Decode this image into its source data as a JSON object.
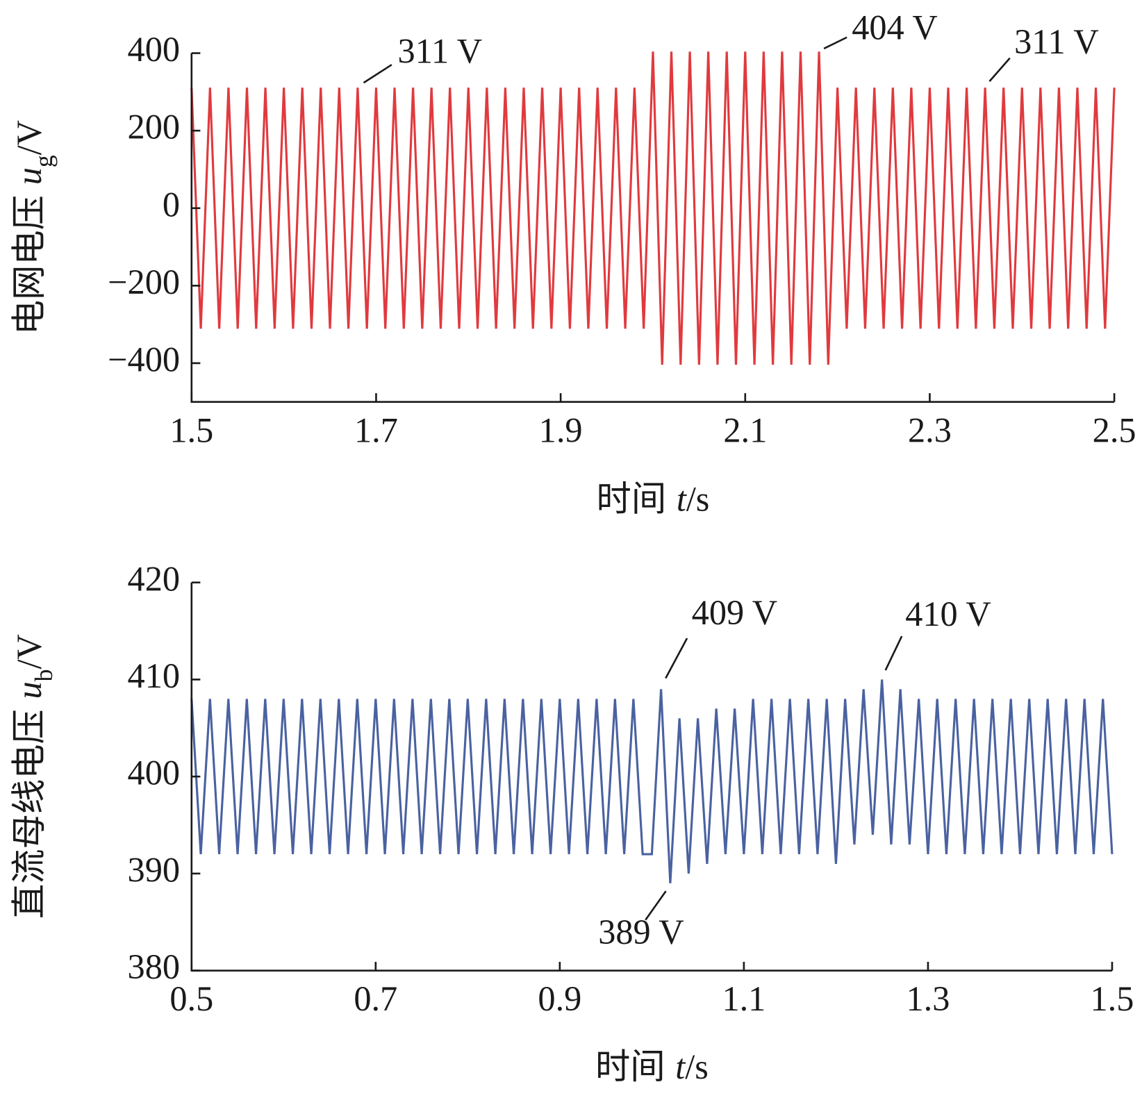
{
  "chart_data": [
    {
      "type": "line",
      "xlabel": {
        "text": "时间",
        "symbol": "t",
        "unit": "/s"
      },
      "ylabel": {
        "text": "电网电压",
        "symbol": "u",
        "subscript": "g",
        "unit": "/V"
      },
      "xlim": [
        1.5,
        2.5
      ],
      "xticks": [
        1.5,
        1.7,
        1.9,
        2.1,
        2.3,
        2.5
      ],
      "ylim": [
        -500,
        400
      ],
      "yticks": [
        {
          "value": -400,
          "label": "−400"
        },
        {
          "value": -200,
          "label": "−200"
        },
        0,
        200,
        400
      ],
      "x": [
        1.5,
        1.51,
        1.52,
        1.53,
        1.54,
        1.55,
        1.56,
        1.57,
        1.58,
        1.59,
        1.6,
        1.61,
        1.62,
        1.63,
        1.64,
        1.65,
        1.66,
        1.67,
        1.68,
        1.69,
        1.7,
        1.71,
        1.72,
        1.73,
        1.74,
        1.75,
        1.76,
        1.77,
        1.78,
        1.79,
        1.8,
        1.81,
        1.82,
        1.83,
        1.84,
        1.85,
        1.86,
        1.87,
        1.88,
        1.89,
        1.9,
        1.91,
        1.92,
        1.93,
        1.94,
        1.95,
        1.96,
        1.97,
        1.98,
        1.99,
        2.0,
        2.01,
        2.02,
        2.03,
        2.04,
        2.05,
        2.06,
        2.07,
        2.08,
        2.09,
        2.1,
        2.11,
        2.12,
        2.13,
        2.14,
        2.15,
        2.16,
        2.17,
        2.18,
        2.19,
        2.2,
        2.21,
        2.22,
        2.23,
        2.24,
        2.25,
        2.26,
        2.27,
        2.28,
        2.29,
        2.3,
        2.31,
        2.32,
        2.33,
        2.34,
        2.35,
        2.36,
        2.37,
        2.38,
        2.39,
        2.4,
        2.41,
        2.42,
        2.43,
        2.44,
        2.45,
        2.46,
        2.47,
        2.48,
        2.49,
        2.5
      ],
      "series": [
        {
          "color": "#e03a3e",
          "values": [
            311,
            -311,
            311,
            -311,
            311,
            -311,
            311,
            -311,
            311,
            -311,
            311,
            -311,
            311,
            -311,
            311,
            -311,
            311,
            -311,
            311,
            -311,
            311,
            -311,
            311,
            -311,
            311,
            -311,
            311,
            -311,
            311,
            -311,
            311,
            -311,
            311,
            -311,
            311,
            -311,
            311,
            -311,
            311,
            -311,
            311,
            -311,
            311,
            -311,
            311,
            -311,
            311,
            -311,
            311,
            -311,
            404,
            -404,
            404,
            -404,
            404,
            -404,
            404,
            -404,
            404,
            -404,
            404,
            -404,
            404,
            -404,
            404,
            -404,
            404,
            -404,
            404,
            -404,
            311,
            -311,
            311,
            -311,
            311,
            -311,
            311,
            -311,
            311,
            -311,
            311,
            -311,
            311,
            -311,
            311,
            -311,
            311,
            -311,
            311,
            -311,
            311,
            -311,
            311,
            -311,
            311,
            -311,
            311,
            -311,
            311,
            -311,
            311
          ]
        }
      ],
      "annotations": [
        {
          "text": "311 V",
          "x": 1.68,
          "y": 311
        },
        {
          "text": "404 V",
          "x": 2.18,
          "y": 404
        },
        {
          "text": "311 V",
          "x": 2.36,
          "y": 311
        }
      ]
    },
    {
      "type": "line",
      "xlabel": {
        "text": "时间",
        "symbol": "t",
        "unit": "/s"
      },
      "ylabel": {
        "text": "直流母线电压",
        "symbol": "u",
        "subscript": "b",
        "unit": "/V"
      },
      "xlim": [
        0.5,
        1.5
      ],
      "xticks": [
        0.5,
        0.7,
        0.9,
        1.1,
        1.3,
        1.5
      ],
      "ylim": [
        380,
        420
      ],
      "yticks": [
        380,
        390,
        400,
        410,
        420
      ],
      "x": [
        0.5,
        0.51,
        0.52,
        0.53,
        0.54,
        0.55,
        0.56,
        0.57,
        0.58,
        0.59,
        0.6,
        0.61,
        0.62,
        0.63,
        0.64,
        0.65,
        0.66,
        0.67,
        0.68,
        0.69,
        0.7,
        0.71,
        0.72,
        0.73,
        0.74,
        0.75,
        0.76,
        0.77,
        0.78,
        0.79,
        0.8,
        0.81,
        0.82,
        0.83,
        0.84,
        0.85,
        0.86,
        0.87,
        0.88,
        0.89,
        0.9,
        0.91,
        0.92,
        0.93,
        0.94,
        0.95,
        0.96,
        0.97,
        0.98,
        0.99,
        1.0,
        1.01,
        1.02,
        1.03,
        1.04,
        1.05,
        1.06,
        1.07,
        1.08,
        1.09,
        1.1,
        1.11,
        1.12,
        1.13,
        1.14,
        1.15,
        1.16,
        1.17,
        1.18,
        1.19,
        1.2,
        1.21,
        1.22,
        1.23,
        1.24,
        1.25,
        1.26,
        1.27,
        1.28,
        1.29,
        1.3,
        1.31,
        1.32,
        1.33,
        1.34,
        1.35,
        1.36,
        1.37,
        1.38,
        1.39,
        1.4,
        1.41,
        1.42,
        1.43,
        1.44,
        1.45,
        1.46,
        1.47,
        1.48,
        1.49,
        1.5
      ],
      "series": [
        {
          "color": "#4a62a0",
          "values": [
            408,
            392,
            408,
            392,
            408,
            392,
            408,
            392,
            408,
            392,
            408,
            392,
            408,
            392,
            408,
            392,
            408,
            392,
            408,
            392,
            408,
            392,
            408,
            392,
            408,
            392,
            408,
            392,
            408,
            392,
            408,
            392,
            408,
            392,
            408,
            392,
            408,
            392,
            408,
            392,
            408,
            392,
            408,
            392,
            408,
            392,
            408,
            392,
            408,
            392,
            392,
            409,
            389,
            406,
            390,
            406,
            391,
            407,
            392,
            407,
            392,
            408,
            392,
            408,
            392,
            408,
            392,
            408,
            392,
            408,
            391,
            408,
            393,
            409,
            394,
            410,
            393,
            409,
            393,
            408,
            392,
            408,
            392,
            408,
            392,
            408,
            392,
            408,
            392,
            408,
            392,
            408,
            392,
            408,
            392,
            408,
            392,
            408,
            392,
            408,
            392
          ]
        }
      ],
      "annotations": [
        {
          "text": "409 V",
          "x": 1.01,
          "y": 409
        },
        {
          "text": "389 V",
          "x": 1.02,
          "y": 389
        },
        {
          "text": "410 V",
          "x": 1.25,
          "y": 410
        }
      ]
    }
  ]
}
